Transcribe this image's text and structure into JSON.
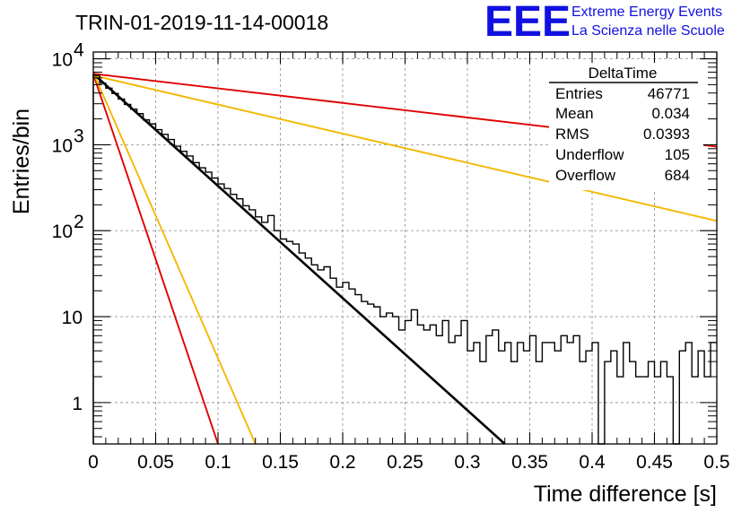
{
  "chart_data": {
    "type": "histogram",
    "title": "TRIN-01-2019-11-14-00018",
    "xlabel": "Time difference [s]",
    "ylabel": "Entries/bin",
    "xlim": [
      0,
      0.5
    ],
    "ylim": [
      0.33,
      12000
    ],
    "yscale": "log",
    "grid": true,
    "x_ticks": [
      "0",
      "0.05",
      "0.1",
      "0.15",
      "0.2",
      "0.25",
      "0.3",
      "0.35",
      "0.4",
      "0.45",
      "0.5"
    ],
    "y_ticks": [
      {
        "value": 1,
        "base": "1",
        "exp": ""
      },
      {
        "value": 10,
        "base": "10",
        "exp": ""
      },
      {
        "value": 100,
        "base": "10",
        "exp": "2"
      },
      {
        "value": 1000,
        "base": "10",
        "exp": "3"
      },
      {
        "value": 10000,
        "base": "10",
        "exp": "4"
      }
    ],
    "histogram": {
      "bin_width": 0.005,
      "bin_centers": [
        0.0025,
        0.0075,
        0.0125,
        0.0175,
        0.0225,
        0.0275,
        0.0325,
        0.0375,
        0.0425,
        0.0475,
        0.0525,
        0.0575,
        0.0625,
        0.0675,
        0.0725,
        0.0775,
        0.0825,
        0.0875,
        0.0925,
        0.0975,
        0.1025,
        0.1075,
        0.1125,
        0.1175,
        0.1225,
        0.1275,
        0.1325,
        0.1375,
        0.1425,
        0.1475,
        0.1525,
        0.1575,
        0.1625,
        0.1675,
        0.1725,
        0.1775,
        0.1825,
        0.1875,
        0.1925,
        0.1975,
        0.2025,
        0.2075,
        0.2125,
        0.2175,
        0.2225,
        0.2275,
        0.2325,
        0.2375,
        0.2425,
        0.2475,
        0.2525,
        0.2575,
        0.2625,
        0.2675,
        0.2725,
        0.2775,
        0.2825,
        0.2875,
        0.2925,
        0.2975,
        0.3025,
        0.3075,
        0.3125,
        0.3175,
        0.3225,
        0.3275,
        0.3325,
        0.3375,
        0.3425,
        0.3475,
        0.3525,
        0.3575,
        0.3625,
        0.3675,
        0.3725,
        0.3775,
        0.3825,
        0.3875,
        0.3925,
        0.3975,
        0.4025,
        0.4075,
        0.4125,
        0.4175,
        0.4225,
        0.4275,
        0.4325,
        0.4375,
        0.4425,
        0.4475,
        0.4525,
        0.4575,
        0.4625,
        0.4675,
        0.4725,
        0.4775,
        0.4825,
        0.4875,
        0.4925,
        0.4975
      ],
      "counts": [
        6400,
        5200,
        4550,
        3950,
        3400,
        2950,
        2600,
        2300,
        1950,
        1750,
        1500,
        1320,
        1150,
        960,
        840,
        740,
        620,
        540,
        480,
        410,
        350,
        310,
        265,
        235,
        195,
        175,
        145,
        125,
        150,
        100,
        80,
        75,
        70,
        55,
        48,
        40,
        35,
        38,
        28,
        22,
        25,
        21,
        18,
        15,
        14,
        13,
        10,
        11,
        10,
        7,
        9,
        12,
        8,
        7,
        8,
        6,
        9,
        5,
        6,
        9,
        4,
        5,
        3,
        6,
        7,
        4,
        5,
        3,
        5,
        4,
        6,
        3,
        5,
        5,
        4,
        6,
        5,
        6,
        3,
        4,
        5,
        0.1,
        3,
        4,
        2,
        5,
        3,
        2,
        2,
        3,
        2,
        3,
        2,
        0.1,
        4,
        5,
        2,
        4,
        2,
        5
      ]
    },
    "series": [
      {
        "color": "#e00000",
        "values": [
          [
            0,
            6600
          ],
          [
            0.1,
            0.33
          ]
        ]
      },
      {
        "color": "#f4b800",
        "values": [
          [
            0,
            6900
          ],
          [
            0.13,
            0.33
          ]
        ]
      },
      {
        "color": "#000000",
        "values": [
          [
            0,
            6700
          ],
          [
            0.33,
            0.33
          ]
        ]
      },
      {
        "color": "#f4b800",
        "values": [
          [
            0,
            6400
          ],
          [
            0.5,
            130
          ]
        ]
      },
      {
        "color": "#e00000",
        "values": [
          [
            0,
            6700
          ],
          [
            0.5,
            950
          ]
        ]
      }
    ]
  },
  "stats": {
    "name": "DeltaTime",
    "rows": [
      {
        "label": "Entries",
        "value": "46771"
      },
      {
        "label": "Mean",
        "value": "0.034"
      },
      {
        "label": "RMS",
        "value": "0.0393"
      },
      {
        "label": "Underflow",
        "value": "105"
      },
      {
        "label": "Overflow",
        "value": "684"
      }
    ]
  },
  "logo": {
    "text": "EEE",
    "line1": "Extreme Energy Events",
    "line2": "La Scienza nelle Scuole"
  }
}
